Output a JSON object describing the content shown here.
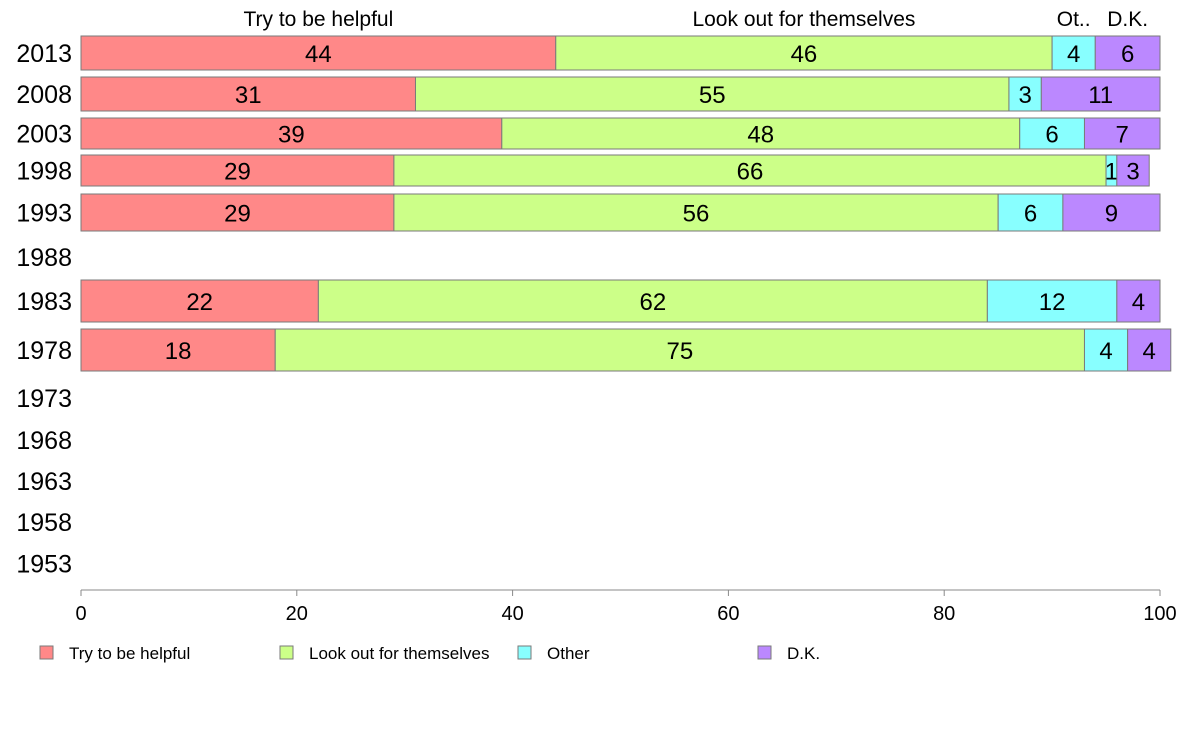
{
  "chart_data": {
    "type": "bar",
    "orientation": "horizontal",
    "stacked": true,
    "categories": [
      "2013",
      "2008",
      "2003",
      "1998",
      "1993",
      "1988",
      "1983",
      "1978",
      "1973",
      "1968",
      "1963",
      "1958",
      "1953"
    ],
    "series": [
      {
        "name": "Try to be helpful",
        "color": "#ff8888",
        "values": [
          44,
          31,
          39,
          29,
          29,
          null,
          22,
          18,
          null,
          null,
          null,
          null,
          null
        ]
      },
      {
        "name": "Look out for themselves",
        "color": "#ccff88",
        "values": [
          46,
          55,
          48,
          66,
          56,
          null,
          62,
          75,
          null,
          null,
          null,
          null,
          null
        ]
      },
      {
        "name": "Other",
        "color": "#88ffff",
        "values": [
          4,
          3,
          6,
          1,
          6,
          null,
          12,
          4,
          null,
          null,
          null,
          null,
          null
        ]
      },
      {
        "name": "D.K.",
        "color": "#bb88ff",
        "values": [
          6,
          11,
          7,
          3,
          9,
          null,
          4,
          4,
          null,
          null,
          null,
          null,
          null
        ]
      }
    ],
    "column_headers": [
      "Try to be helpful",
      "Look out for themselves",
      "Ot..",
      "D.K."
    ],
    "xlim": [
      0,
      100
    ],
    "xticks": [
      0,
      20,
      40,
      60,
      80,
      100
    ],
    "grid": false,
    "legend": {
      "position": "bottom",
      "labels": [
        "Try to be helpful",
        "Look out for themselves",
        "Other",
        "D.K."
      ]
    }
  }
}
